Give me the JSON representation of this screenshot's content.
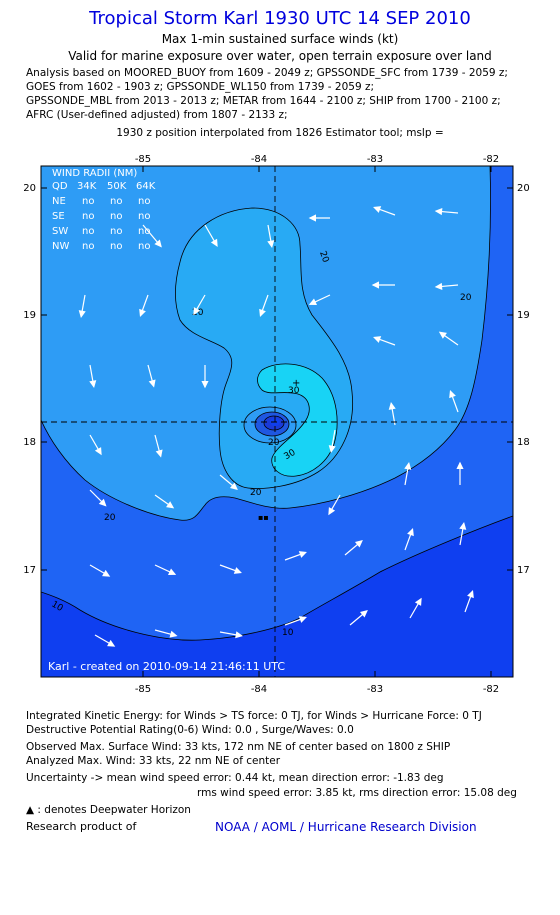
{
  "header": {
    "title": "Tropical Storm Karl 1930 UTC 14 SEP 2010",
    "subtitle1": "Max 1-min sustained surface winds (kt)",
    "subtitle2": "Valid for marine exposure over water, open terrain exposure over land"
  },
  "analysis": {
    "lines": [
      "Analysis based on MOORED_BUOY from 1609 - 2049 z; GPSSONDE_SFC from 1739 - 2059 z;",
      "GOES from 1602 - 1903 z; GPSSONDE_WL150 from 1739 - 2059 z;",
      "GPSSONDE_MBL from 2013 - 2013 z; METAR from 1644 - 2100 z; SHIP from 1700 - 2100 z;",
      "AFRC (User-defined adjusted) from 1807 - 2133 z;"
    ],
    "interp": "1930 z position interpolated from 1826 Estimator tool; mslp ="
  },
  "map": {
    "lon_ticks": [
      "-85",
      "-84",
      "-83",
      "-82"
    ],
    "lat_ticks": [
      "20",
      "19",
      "18",
      "17"
    ],
    "lon_range": [
      -86.0,
      -81.8
    ],
    "lat_range": [
      16.2,
      20.3
    ],
    "center": {
      "lon": -83.83,
      "lat": 18.15
    },
    "wind_radii": {
      "title": "WIND RADII (NM)",
      "header": [
        "QD",
        "34K",
        "50K",
        "64K"
      ],
      "rows": [
        [
          "NE",
          "no",
          "no",
          "no"
        ],
        [
          "SE",
          "no",
          "no",
          "no"
        ],
        [
          "SW",
          "no",
          "no",
          "no"
        ],
        [
          "NW",
          "no",
          "no",
          "no"
        ]
      ]
    },
    "contour_labels": [
      "20",
      "20",
      "20",
      "20",
      "30",
      "30",
      "20",
      "20",
      "10",
      "10"
    ],
    "credit": "Karl - created on 2010-09-14 21:46:11 UTC",
    "colors": {
      "band_0_10": "#0f3ff0",
      "band_10_20": "#1f64f4",
      "band_20_30": "#2e9cf5",
      "band_30_plus": "#18d3f5",
      "low_center": "#1a3ad8",
      "arrow": "#ffffff"
    }
  },
  "footer": {
    "ike": "Integrated Kinetic Energy:  for Winds > TS force: 0 TJ,  for Winds > Hurricane Force: 0 TJ",
    "dpr": "Destructive Potential Rating(0-6)   Wind: 0.0 , Surge/Waves: 0.0",
    "obs": "Observed Max. Surface Wind: 33 kts, 172 nm NE of center based on 1800 z SHIP",
    "analyzed": "Analyzed Max. Wind: 33 kts, 22 nm NE of center",
    "unc1": "Uncertainty -> mean wind speed error: 0.44 kt,   mean direction error:  -1.83 deg",
    "unc2": "rms wind speed error: 3.85 kt,   rms direction error: 15.08 deg",
    "dwh": ": denotes Deepwater Horizon",
    "research": "Research product of",
    "noaa": "NOAA / AOML / Hurricane Research Division"
  }
}
